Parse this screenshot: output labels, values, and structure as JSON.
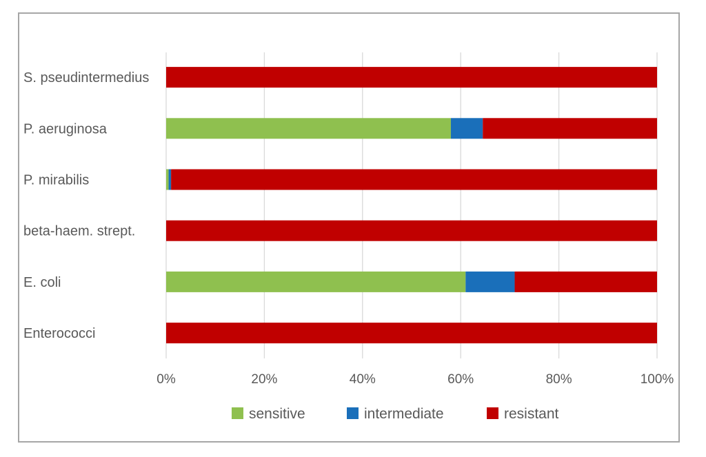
{
  "chart_data": {
    "type": "bar",
    "orientation": "horizontal",
    "stacked": "percent",
    "categories": [
      "S. pseudintermedius",
      "P. aeruginosa",
      "P. mirabilis",
      "beta-haem. strept.",
      "E. coli",
      "Enterococci"
    ],
    "series": [
      {
        "name": "sensitive",
        "color": "#8fc04f",
        "values": [
          0,
          58,
          0.5,
          0,
          61,
          0
        ]
      },
      {
        "name": "intermediate",
        "color": "#1a6fba",
        "values": [
          0,
          6.5,
          0.5,
          0,
          10,
          0
        ]
      },
      {
        "name": "resistant",
        "color": "#c00000",
        "values": [
          100,
          35.5,
          99,
          100,
          29,
          100
        ]
      }
    ],
    "xlim": [
      0,
      100
    ],
    "x_ticks": [
      "0%",
      "20%",
      "40%",
      "60%",
      "80%",
      "100%"
    ],
    "grid": true,
    "legend_position": "bottom",
    "title": "",
    "xlabel": "",
    "ylabel": ""
  }
}
